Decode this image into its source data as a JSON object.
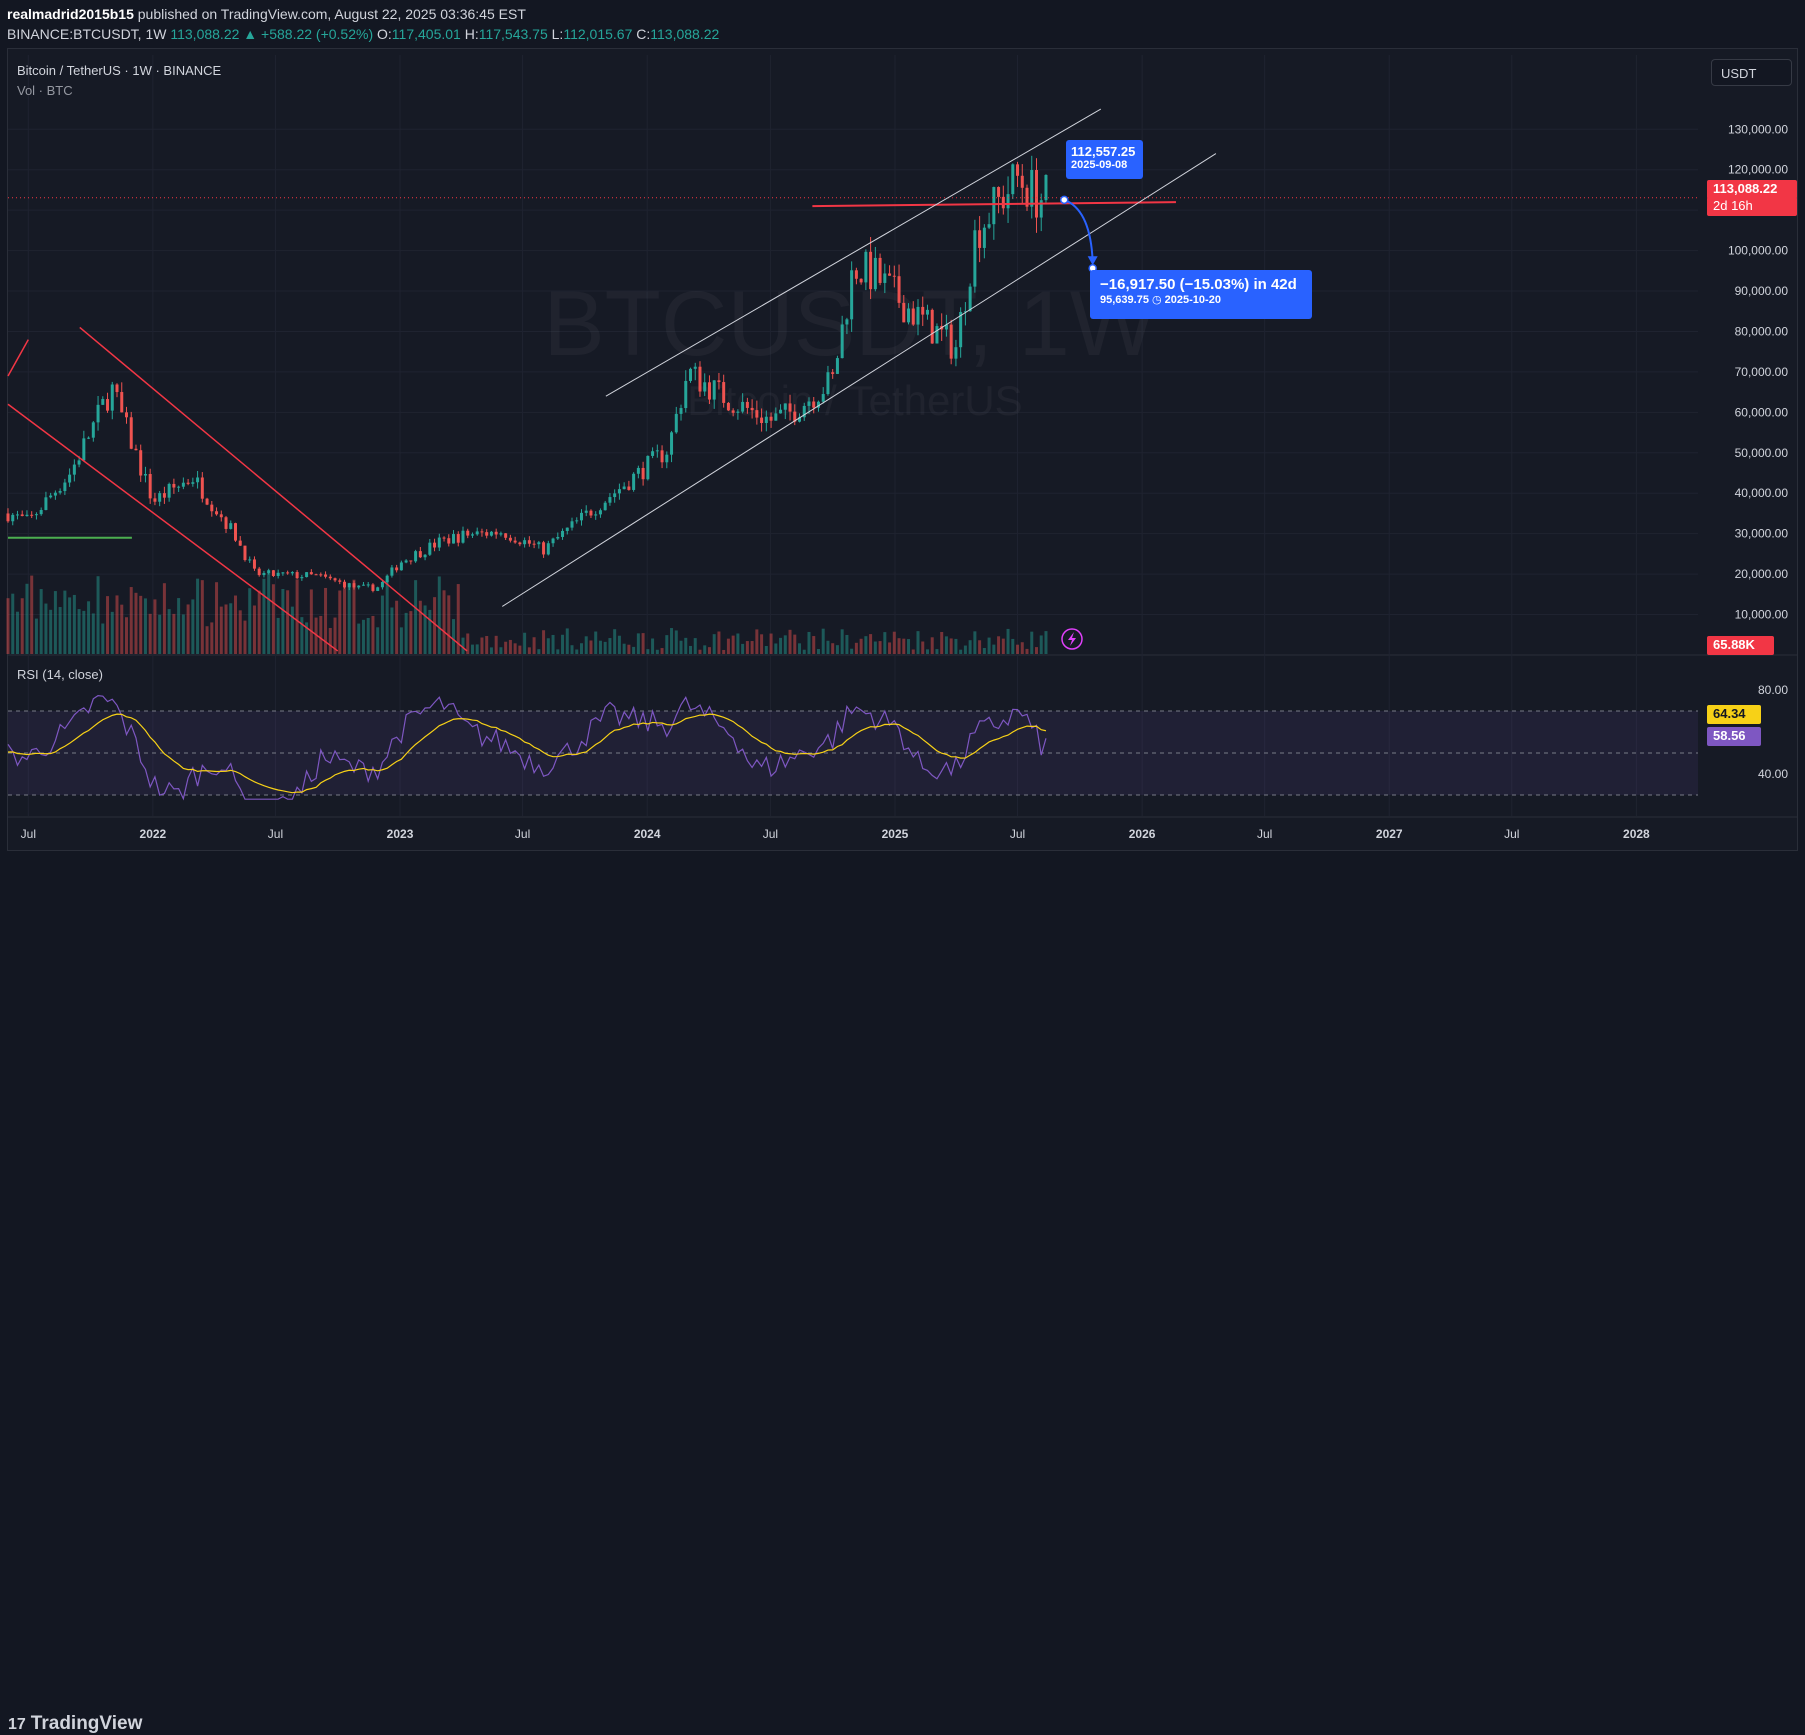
{
  "header": {
    "author": "realmadrid2015b15",
    "published": "published on TradingView.com, August 22, 2025 03:36:45 EST",
    "symbol": "BINANCE:BTCUSDT, 1W",
    "last": "113,088.22",
    "change": "+588.22 (+0.52%)",
    "o_label": "O:",
    "o": "117,405.01",
    "h_label": "H:",
    "h": "117,543.75",
    "l_label": "L:",
    "l": "112,015.67",
    "c_label": "C:",
    "c": "113,088.22"
  },
  "legend": {
    "title": "Bitcoin / TetherUS · 1W · BINANCE",
    "vol": "Vol · BTC",
    "rsi": "RSI (14, close)"
  },
  "unit_button": "USDT",
  "watermark": {
    "symbol": "BTCUSDT, 1W",
    "name": "Bitcoin / TetherUS"
  },
  "price_tags": {
    "last_price": "113,088.22",
    "countdown": "2d 16h",
    "volume": "65.88K",
    "rsi_ma": "64.34",
    "rsi": "58.56"
  },
  "projection": {
    "start_price": "112,557.25",
    "start_date": "2025-09-08",
    "change": "−16,917.50 (−15.03%) in 42d",
    "target_price": "95,639.75",
    "target_date": "2025-10-20"
  },
  "footer": {
    "brand": "TradingView"
  },
  "colors": {
    "up": "#26a69a",
    "down": "#ef5350",
    "rsi": "#7e57c2",
    "rsi_ma": "#f7d117",
    "callout": "#2962ff",
    "trendline_red": "#f23645"
  },
  "chart_data": [
    {
      "type": "candlestick",
      "title": "Bitcoin / TetherUS · 1W · BINANCE",
      "x_ticks": [
        "Jul",
        "2022",
        "Jul",
        "2023",
        "Jul",
        "2024",
        "Jul",
        "2025",
        "Jul",
        "2026",
        "Jul",
        "2027",
        "Jul",
        "2028"
      ],
      "x_range": [
        "2021-06",
        "2028-04"
      ],
      "y_ticks": [
        "10,000.00",
        "20,000.00",
        "30,000.00",
        "40,000.00",
        "50,000.00",
        "60,000.00",
        "70,000.00",
        "80,000.00",
        "90,000.00",
        "100,000.00",
        "110,000.00",
        "120,000.00",
        "130,000.00"
      ],
      "y_tick_values": [
        10000,
        20000,
        30000,
        40000,
        50000,
        60000,
        70000,
        80000,
        90000,
        100000,
        110000,
        120000,
        130000
      ],
      "ylim": [
        0,
        137000
      ],
      "approx_price_path": {
        "dates": [
          "2021-06",
          "2021-07",
          "2021-09",
          "2021-11",
          "2022-01",
          "2022-03",
          "2022-05",
          "2022-06",
          "2022-09",
          "2022-11",
          "2022-12",
          "2023-01",
          "2023-03",
          "2023-04",
          "2023-06",
          "2023-08",
          "2023-10",
          "2023-12",
          "2024-02",
          "2024-03",
          "2024-05",
          "2024-07",
          "2024-08",
          "2024-10",
          "2024-11",
          "2024-12",
          "2025-02",
          "2025-04",
          "2025-05",
          "2025-07",
          "2025-08"
        ],
        "close": [
          35000,
          33000,
          45000,
          66000,
          38000,
          44000,
          30000,
          20000,
          19500,
          16500,
          16800,
          23000,
          28000,
          29500,
          30500,
          26000,
          34500,
          42500,
          51000,
          70000,
          63000,
          58000,
          60000,
          68000,
          96000,
          94000,
          84000,
          76000,
          105000,
          118000,
          113088
        ]
      },
      "last_price": 113088.22,
      "horizontal_line": 110000,
      "channel": "ascending parallel channel from late 2023 through 2025",
      "downtrend_channel": "descending red channel from late 2021 to early 2023",
      "projection": {
        "from": 112557.25,
        "from_date": "2025-09-08",
        "to": 95639.75,
        "to_date": "2025-10-20",
        "change": -16917.5,
        "change_pct": -15.03,
        "days": 42
      }
    },
    {
      "type": "line",
      "title": "RSI (14, close)",
      "y_ticks": [
        "40.00",
        "80.00"
      ],
      "ylim": [
        20,
        90
      ],
      "bands": [
        30,
        50,
        70
      ],
      "series": [
        {
          "name": "RSI",
          "current": 58.56
        },
        {
          "name": "RSI MA",
          "current": 64.34
        }
      ]
    }
  ]
}
